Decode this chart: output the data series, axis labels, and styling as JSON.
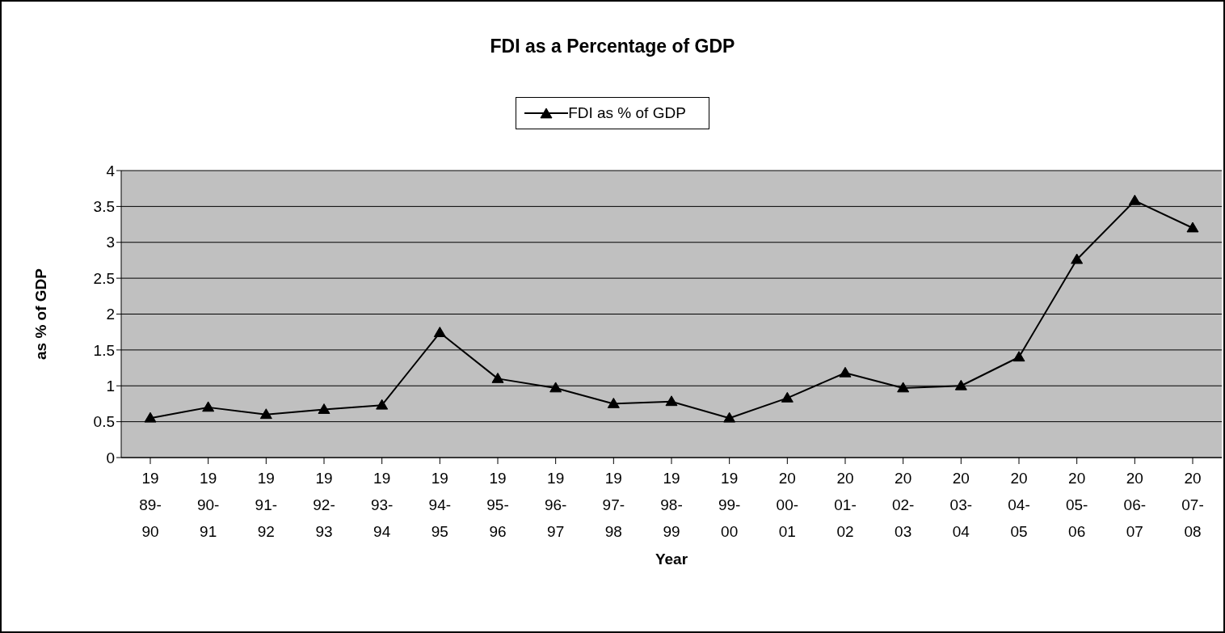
{
  "chart_data": {
    "type": "line",
    "title": "FDI as a Percentage of GDP",
    "xlabel": "Year",
    "ylabel": "as % of GDP",
    "categories": [
      "1989-90",
      "1990-91",
      "1991-92",
      "1992-93",
      "1993-94",
      "1994-95",
      "1995-96",
      "1996-97",
      "1997-98",
      "1998-99",
      "1999-00",
      "2000-01",
      "2001-02",
      "2002-03",
      "2003-04",
      "2004-05",
      "2005-06",
      "2006-07",
      "2007-08"
    ],
    "series": [
      {
        "name": "FDI as % of GDP",
        "color": "#000000",
        "values": [
          0.55,
          0.7,
          0.6,
          0.67,
          0.73,
          1.74,
          1.1,
          0.97,
          0.75,
          0.78,
          0.55,
          0.83,
          1.18,
          0.97,
          1.0,
          1.4,
          2.76,
          3.58,
          3.2
        ]
      }
    ],
    "ylim": [
      0,
      4
    ],
    "yticks": [
      0,
      0.5,
      1,
      1.5,
      2,
      2.5,
      3,
      3.5,
      4
    ],
    "grid": "y",
    "legend": "top",
    "marker": "triangle",
    "line_style": "solid"
  }
}
